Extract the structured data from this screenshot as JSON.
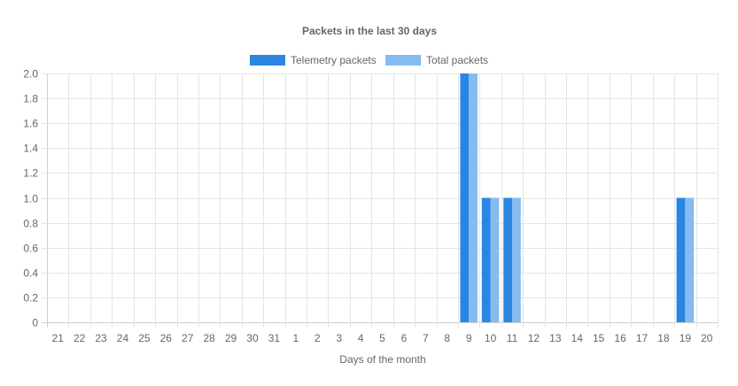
{
  "chart_data": {
    "type": "bar",
    "title": "Packets in the last 30 days",
    "xlabel": "Days of the month",
    "ylabel": "",
    "categories": [
      "21",
      "22",
      "23",
      "24",
      "25",
      "26",
      "27",
      "28",
      "29",
      "30",
      "31",
      "1",
      "2",
      "3",
      "4",
      "5",
      "6",
      "7",
      "8",
      "9",
      "10",
      "11",
      "12",
      "13",
      "14",
      "15",
      "16",
      "17",
      "18",
      "19",
      "20"
    ],
    "yticks": [
      "0",
      "0.2",
      "0.4",
      "0.6",
      "0.8",
      "1.0",
      "1.2",
      "1.4",
      "1.6",
      "1.8",
      "2.0"
    ],
    "ylim": [
      0,
      2
    ],
    "grid": true,
    "legend_position": "top",
    "series": [
      {
        "name": "Telemetry packets",
        "color": "#2a86e2",
        "values": [
          0,
          0,
          0,
          0,
          0,
          0,
          0,
          0,
          0,
          0,
          0,
          0,
          0,
          0,
          0,
          0,
          0,
          0,
          0,
          2,
          1,
          1,
          0,
          0,
          0,
          0,
          0,
          0,
          0,
          1,
          0
        ]
      },
      {
        "name": "Total packets",
        "color": "#85bbef",
        "values": [
          0,
          0,
          0,
          0,
          0,
          0,
          0,
          0,
          0,
          0,
          0,
          0,
          0,
          0,
          0,
          0,
          0,
          0,
          0,
          2,
          1,
          1,
          0,
          0,
          0,
          0,
          0,
          0,
          0,
          1,
          0
        ]
      }
    ]
  }
}
